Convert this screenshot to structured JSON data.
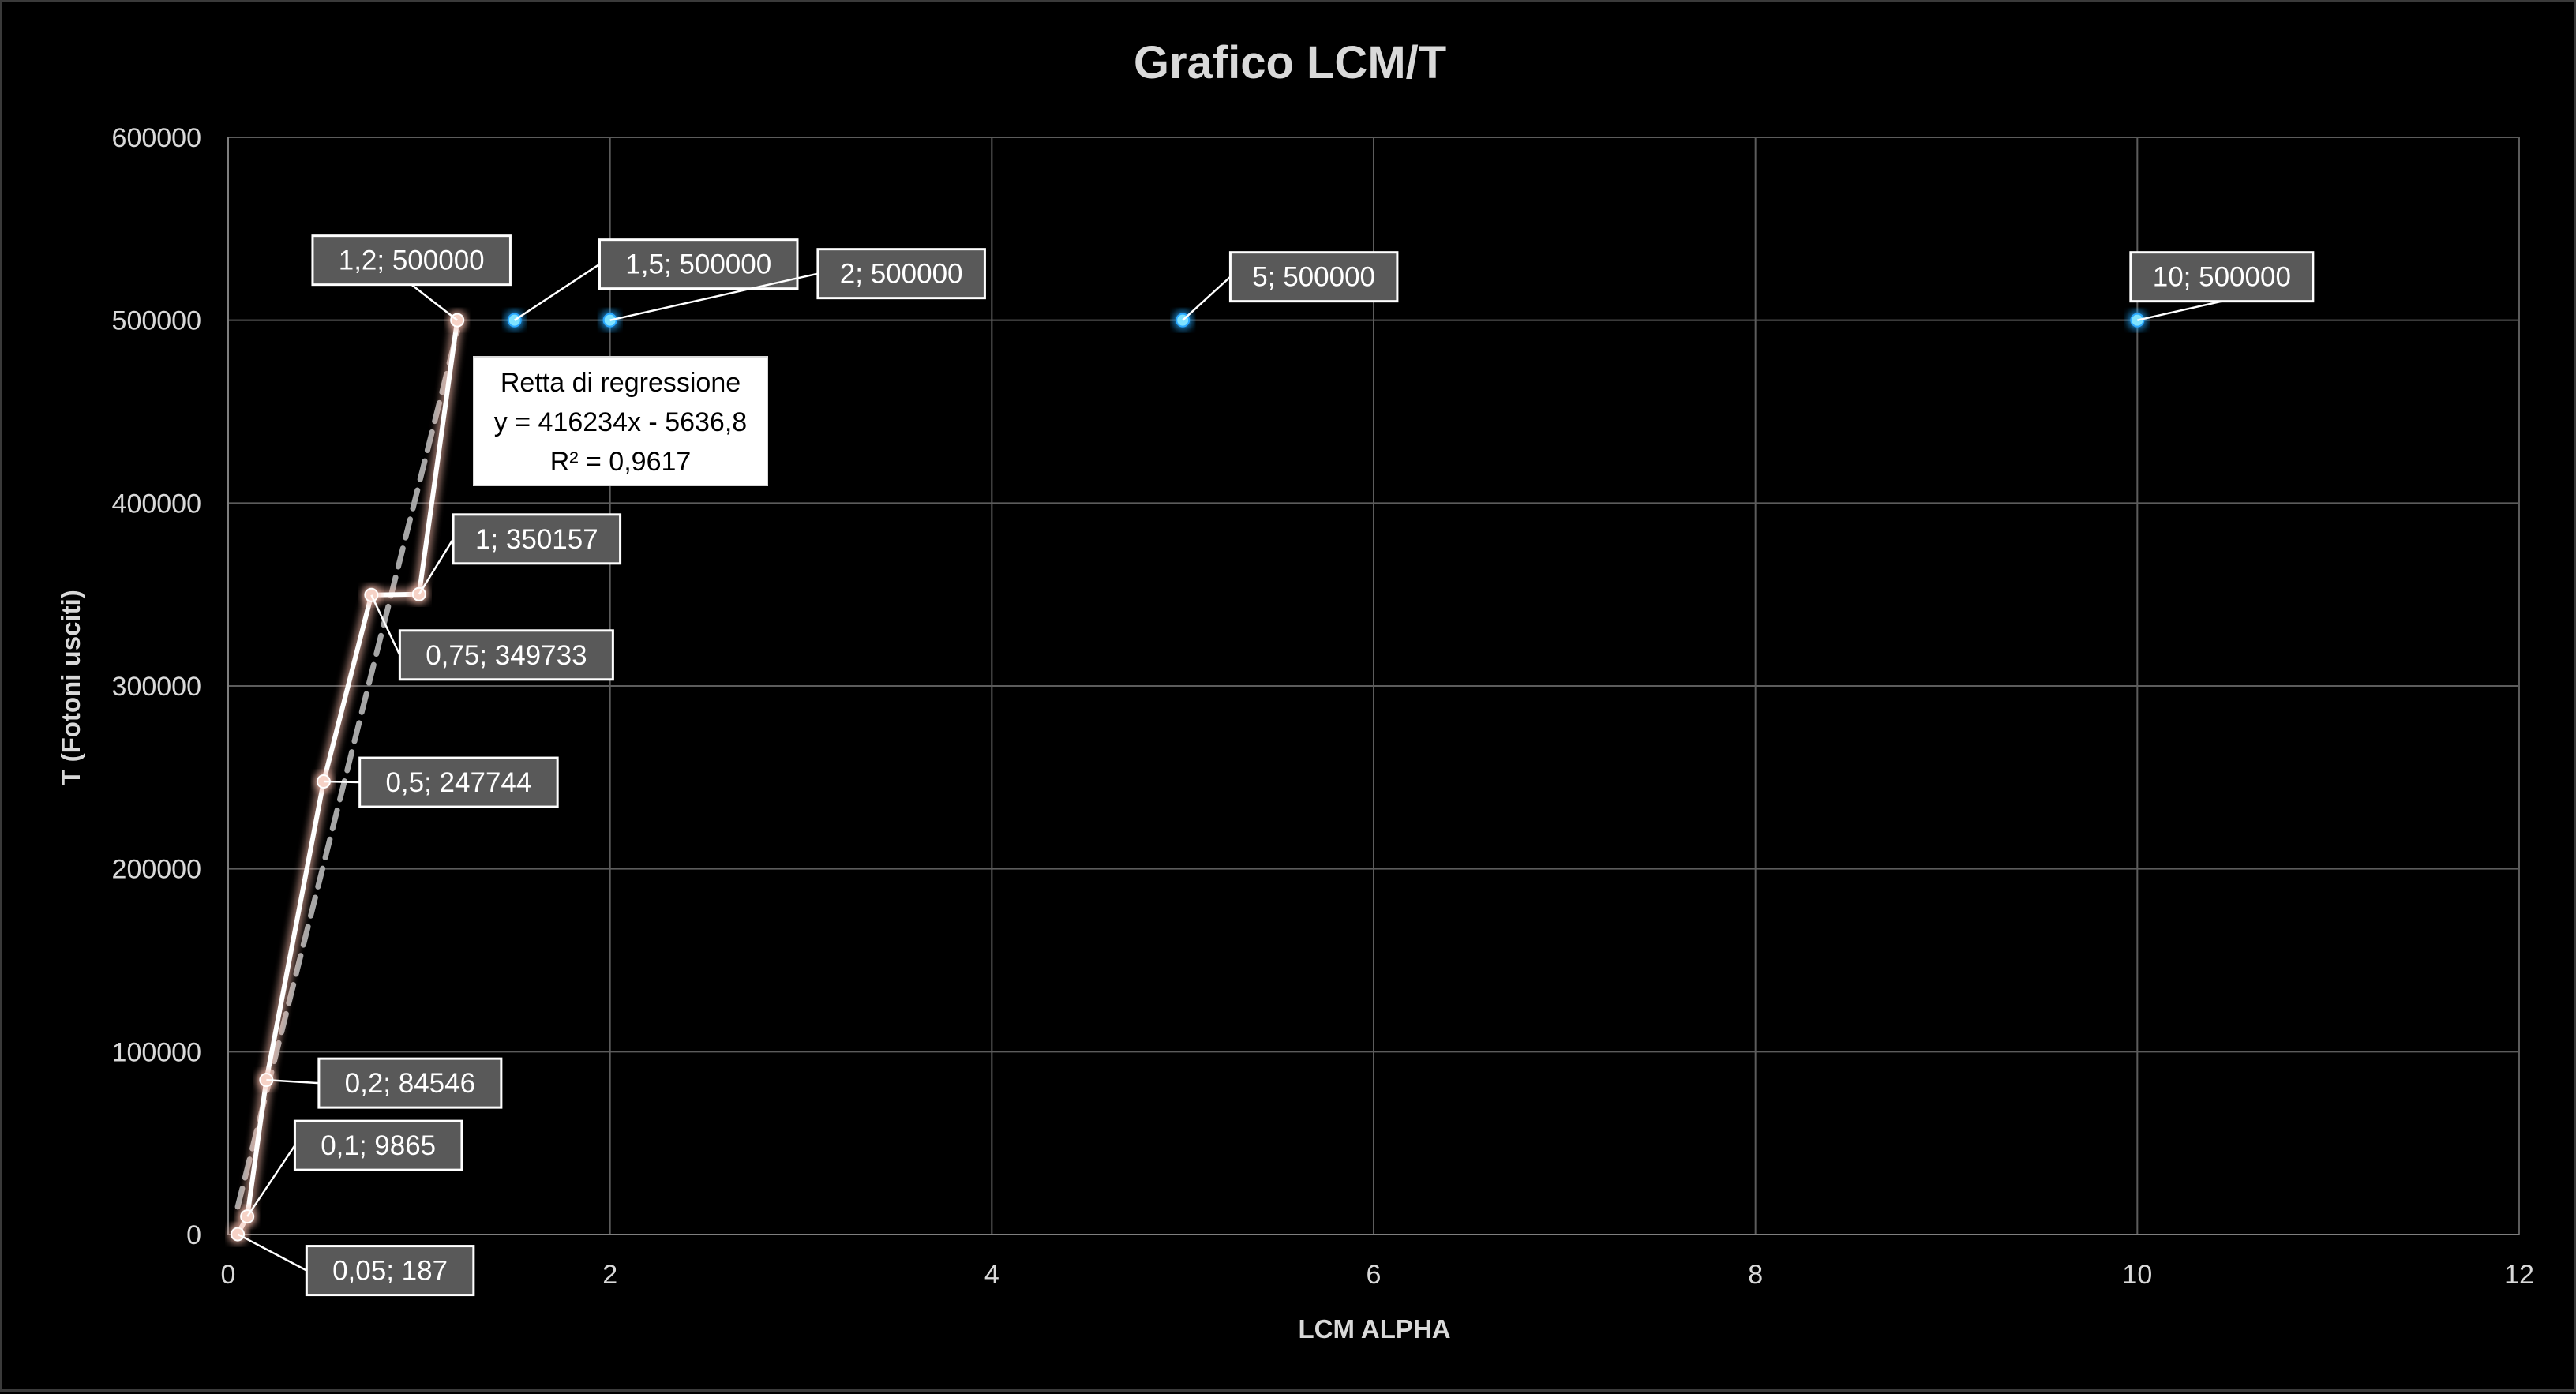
{
  "chart_data": {
    "type": "scatter",
    "title": "Grafico LCM/T",
    "xlabel": "LCM ALPHA",
    "ylabel": "T (Fotoni usciti)",
    "xlim": [
      0,
      12
    ],
    "ylim": [
      0,
      600000
    ],
    "x_ticks": [
      "0",
      "2",
      "4",
      "6",
      "8",
      "10",
      "12"
    ],
    "y_ticks": [
      "0",
      "100000",
      "200000",
      "300000",
      "400000",
      "500000",
      "600000"
    ],
    "grid": true,
    "series": [
      {
        "style": "line-with-markers",
        "color": "#ffffff",
        "glow": "#f2b8a8",
        "points": [
          {
            "x": 0.05,
            "y": 187,
            "label": "0,05; 187"
          },
          {
            "x": 0.1,
            "y": 9865,
            "label": "0,1; 9865"
          },
          {
            "x": 0.2,
            "y": 84546,
            "label": "0,2; 84546"
          },
          {
            "x": 0.5,
            "y": 247744,
            "label": "0,5; 247744"
          },
          {
            "x": 0.75,
            "y": 349733,
            "label": "0,75; 349733"
          },
          {
            "x": 1,
            "y": 350157,
            "label": "1; 350157"
          },
          {
            "x": 1.2,
            "y": 500000,
            "label": "1,2; 500000"
          }
        ]
      },
      {
        "style": "line-with-markers",
        "color": "#3ad6f5",
        "glow": "#2aa9ff",
        "points": [
          {
            "x": 1.5,
            "y": 500000,
            "label": "1,5; 500000"
          },
          {
            "x": 2,
            "y": 500000,
            "label": "2; 500000"
          },
          {
            "x": 5,
            "y": 500000,
            "label": "5; 500000"
          },
          {
            "x": 10,
            "y": 500000,
            "label": "10; 500000"
          }
        ]
      }
    ],
    "trendline": {
      "style": "dashed",
      "color": "#a6a6a6",
      "x_range": [
        0.05,
        1.2
      ],
      "slope": 416234,
      "intercept": -5636.8,
      "label_lines": [
        "Retta di regressione",
        "y = 416234x - 5636,8",
        "R² = 0,9617"
      ]
    }
  }
}
